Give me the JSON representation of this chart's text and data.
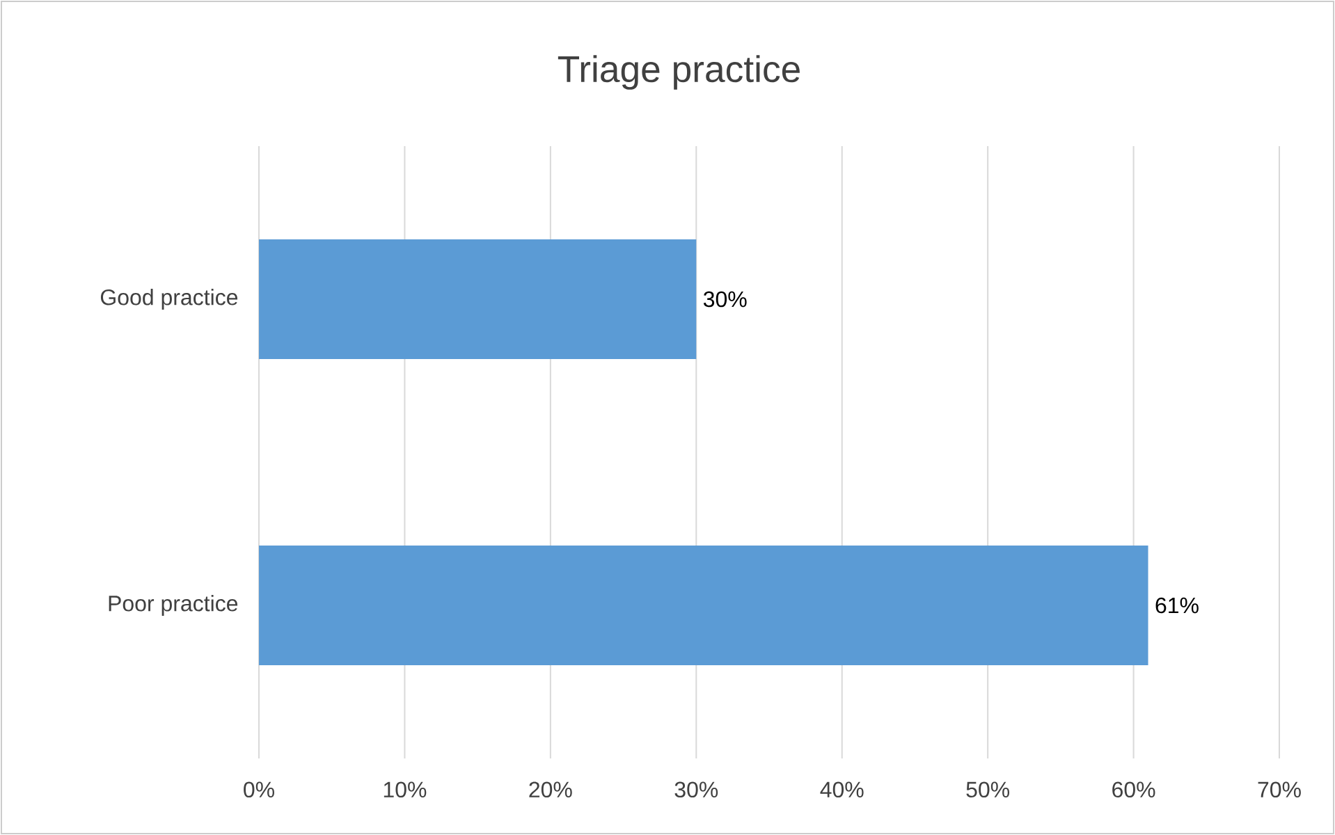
{
  "chart_data": {
    "type": "bar",
    "orientation": "horizontal",
    "title": "Triage practice",
    "categories": [
      "Good practice",
      "Poor practice"
    ],
    "values": [
      30,
      61
    ],
    "value_labels": [
      "30%",
      "61%"
    ],
    "color": "#5b9bd5",
    "xlim": [
      0,
      70
    ],
    "xticks": [
      {
        "value": 0,
        "label": "0%"
      },
      {
        "value": 10,
        "label": "10%"
      },
      {
        "value": 20,
        "label": "20%"
      },
      {
        "value": 30,
        "label": "30%"
      },
      {
        "value": 40,
        "label": "40%"
      },
      {
        "value": 50,
        "label": "50%"
      },
      {
        "value": 60,
        "label": "60%"
      },
      {
        "value": 70,
        "label": "70%"
      }
    ],
    "grid": "x"
  }
}
